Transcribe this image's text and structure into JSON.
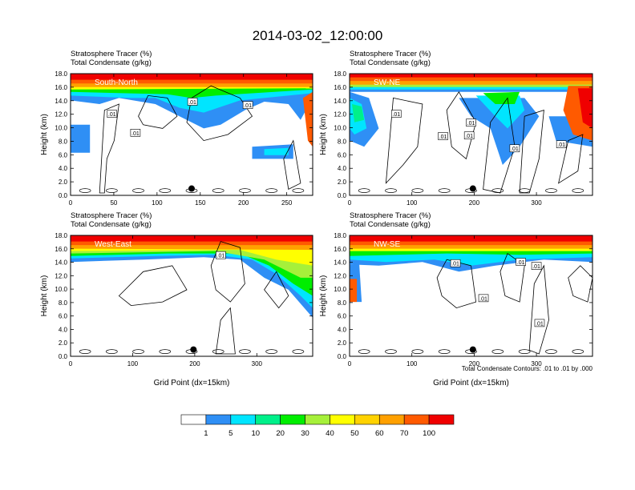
{
  "figure": {
    "title": "2014-03-02_12:00:00",
    "xlabel": "Grid Point (dx=15km)",
    "ylabel": "Height (km)",
    "field1": "Stratosphere Tracer",
    "field1_units": "(%)",
    "field2": "Total Condensate",
    "field2_units": "(g/kg)",
    "contour_note": "Total Condensate Contours: .01 to .01 by .000",
    "colorbar": {
      "labels": [
        "1",
        "5",
        "10",
        "20",
        "30",
        "40",
        "50",
        "60",
        "70",
        "100"
      ],
      "colors": [
        "#ffffff",
        "#2f8ff5",
        "#00e5ff",
        "#00f08a",
        "#00ee00",
        "#a6f03a",
        "#ffff00",
        "#ffd200",
        "#ffa000",
        "#ff5a00",
        "#f00000"
      ]
    }
  },
  "chart_data": [
    {
      "type": "heatmap",
      "panel": "South-North",
      "title": "Stratosphere Tracer (%)",
      "subtitle": "Total Condensate (g/kg)",
      "xlabel": "",
      "ylabel": "Height (km)",
      "xlim": [
        0,
        280
      ],
      "ylim": [
        0,
        18
      ],
      "xticks": [
        0,
        50,
        100,
        150,
        200,
        250
      ],
      "yticks": [
        "0.0",
        "2.0",
        "4.0",
        "6.0",
        "8.0",
        "10.0",
        "12.0",
        "14.0",
        "16.0",
        "18.0"
      ],
      "marker_x": 140,
      "marker_y": 1.0,
      "contour_labels": [
        {
          "text": ".01",
          "x": 48,
          "y": 12.0
        },
        {
          "text": ".01",
          "x": 75,
          "y": 9.2
        },
        {
          "text": ".01",
          "x": 141,
          "y": 13.8
        },
        {
          "text": ".01",
          "x": 205,
          "y": 13.3
        }
      ]
    },
    {
      "type": "heatmap",
      "panel": "SW-NE",
      "title": "Stratosphere Tracer (%)",
      "subtitle": "Total Condensate (g/kg)",
      "xlabel": "",
      "ylabel": "Height (km)",
      "xlim": [
        0,
        390
      ],
      "ylim": [
        0,
        18
      ],
      "xticks": [
        0,
        100,
        200,
        300
      ],
      "yticks": [
        "0.0",
        "2.0",
        "4.0",
        "6.0",
        "8.0",
        "10.0",
        "12.0",
        "14.0",
        "16.0",
        "18.0"
      ],
      "marker_x": 198,
      "marker_y": 1.0,
      "contour_labels": [
        {
          "text": ".01",
          "x": 75,
          "y": 12.0
        },
        {
          "text": ".01",
          "x": 150,
          "y": 8.7
        },
        {
          "text": ".01",
          "x": 195,
          "y": 10.7
        },
        {
          "text": ".01",
          "x": 192,
          "y": 8.8
        },
        {
          "text": ".01",
          "x": 265,
          "y": 6.9
        },
        {
          "text": ".01",
          "x": 340,
          "y": 7.5
        }
      ]
    },
    {
      "type": "heatmap",
      "panel": "West-East",
      "title": "Stratosphere Tracer (%)",
      "subtitle": "Total Condensate (g/kg)",
      "xlabel": "Grid Point (dx=15km)",
      "ylabel": "Height (km)",
      "xlim": [
        0,
        390
      ],
      "ylim": [
        0,
        18
      ],
      "xticks": [
        0,
        100,
        200,
        300
      ],
      "yticks": [
        "0.0",
        "2.0",
        "4.0",
        "6.0",
        "8.0",
        "10.0",
        "12.0",
        "14.0",
        "16.0",
        "18.0"
      ],
      "marker_x": 198,
      "marker_y": 1.0,
      "contour_labels": [
        {
          "text": ".01",
          "x": 242,
          "y": 15.0
        }
      ]
    },
    {
      "type": "heatmap",
      "panel": "NW-SE",
      "title": "Stratosphere Tracer (%)",
      "subtitle": "Total Condensate (g/kg)",
      "xlabel": "Grid Point (dx=15km)",
      "ylabel": "Height (km)",
      "xlim": [
        0,
        390
      ],
      "ylim": [
        0,
        18
      ],
      "xticks": [
        0,
        100,
        200,
        300
      ],
      "yticks": [
        "0.0",
        "2.0",
        "4.0",
        "6.0",
        "8.0",
        "10.0",
        "12.0",
        "14.0",
        "16.0",
        "18.0"
      ],
      "marker_x": 198,
      "marker_y": 1.0,
      "contour_labels": [
        {
          "text": ".01",
          "x": 170,
          "y": 13.8
        },
        {
          "text": ".01",
          "x": 275,
          "y": 14.0
        },
        {
          "text": ".01",
          "x": 300,
          "y": 13.4
        },
        {
          "text": ".01",
          "x": 215,
          "y": 8.6
        },
        {
          "text": ".01",
          "x": 305,
          "y": 4.9
        }
      ]
    }
  ]
}
